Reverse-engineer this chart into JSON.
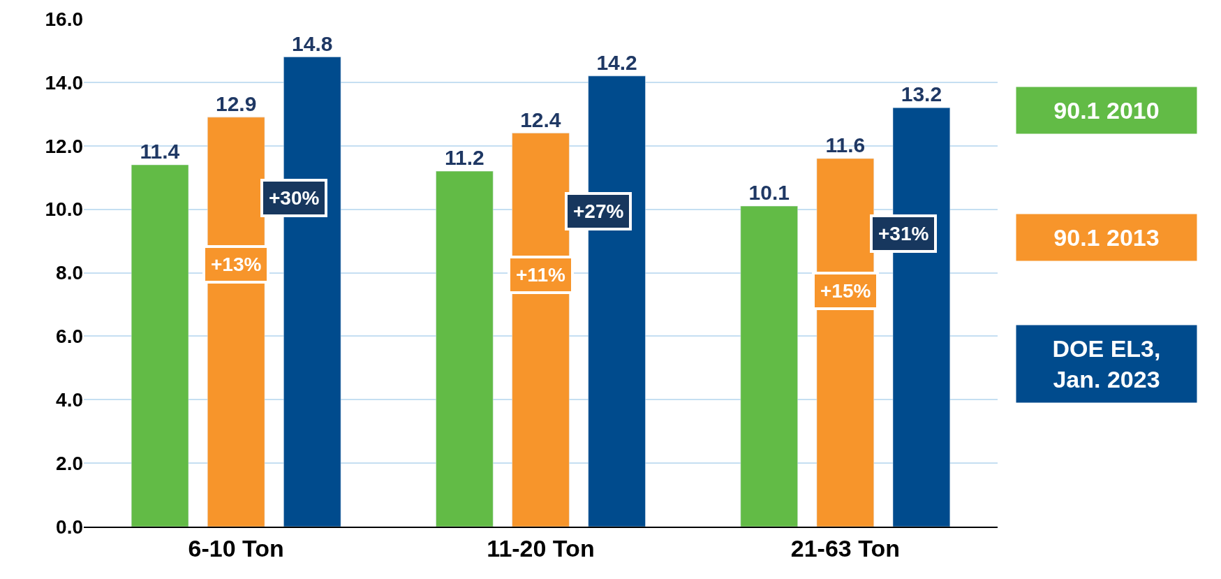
{
  "chart_data": {
    "type": "bar",
    "categories": [
      "6-10 Ton",
      "11-20 Ton",
      "21-63 Ton"
    ],
    "series": [
      {
        "name": "90.1 2010",
        "color": "#62bb46",
        "values": [
          11.4,
          11.2,
          10.1
        ]
      },
      {
        "name": "90.1 2013",
        "color": "#f7952b",
        "values": [
          12.9,
          12.4,
          11.6
        ]
      },
      {
        "name": "DOE EL3, Jan. 2023",
        "color": "#004b8d",
        "values": [
          14.8,
          14.2,
          13.2
        ]
      }
    ],
    "ylim": [
      0,
      16
    ],
    "yticks": [
      {
        "value": 0,
        "label": "0.0"
      },
      {
        "value": 2,
        "label": "2.0"
      },
      {
        "value": 4,
        "label": "4.0"
      },
      {
        "value": 6,
        "label": "6.0"
      },
      {
        "value": 8,
        "label": "8.0"
      },
      {
        "value": 10,
        "label": "10.0"
      },
      {
        "value": 12,
        "label": "12.0"
      },
      {
        "value": 14,
        "label": "14.0"
      },
      {
        "value": 16,
        "label": "16.0"
      }
    ],
    "annotations": [
      "+13%",
      "+30%",
      "+11%",
      "+27%",
      "+15%",
      "+31%"
    ],
    "data_labels": true,
    "grid": "y",
    "legend": "right"
  }
}
